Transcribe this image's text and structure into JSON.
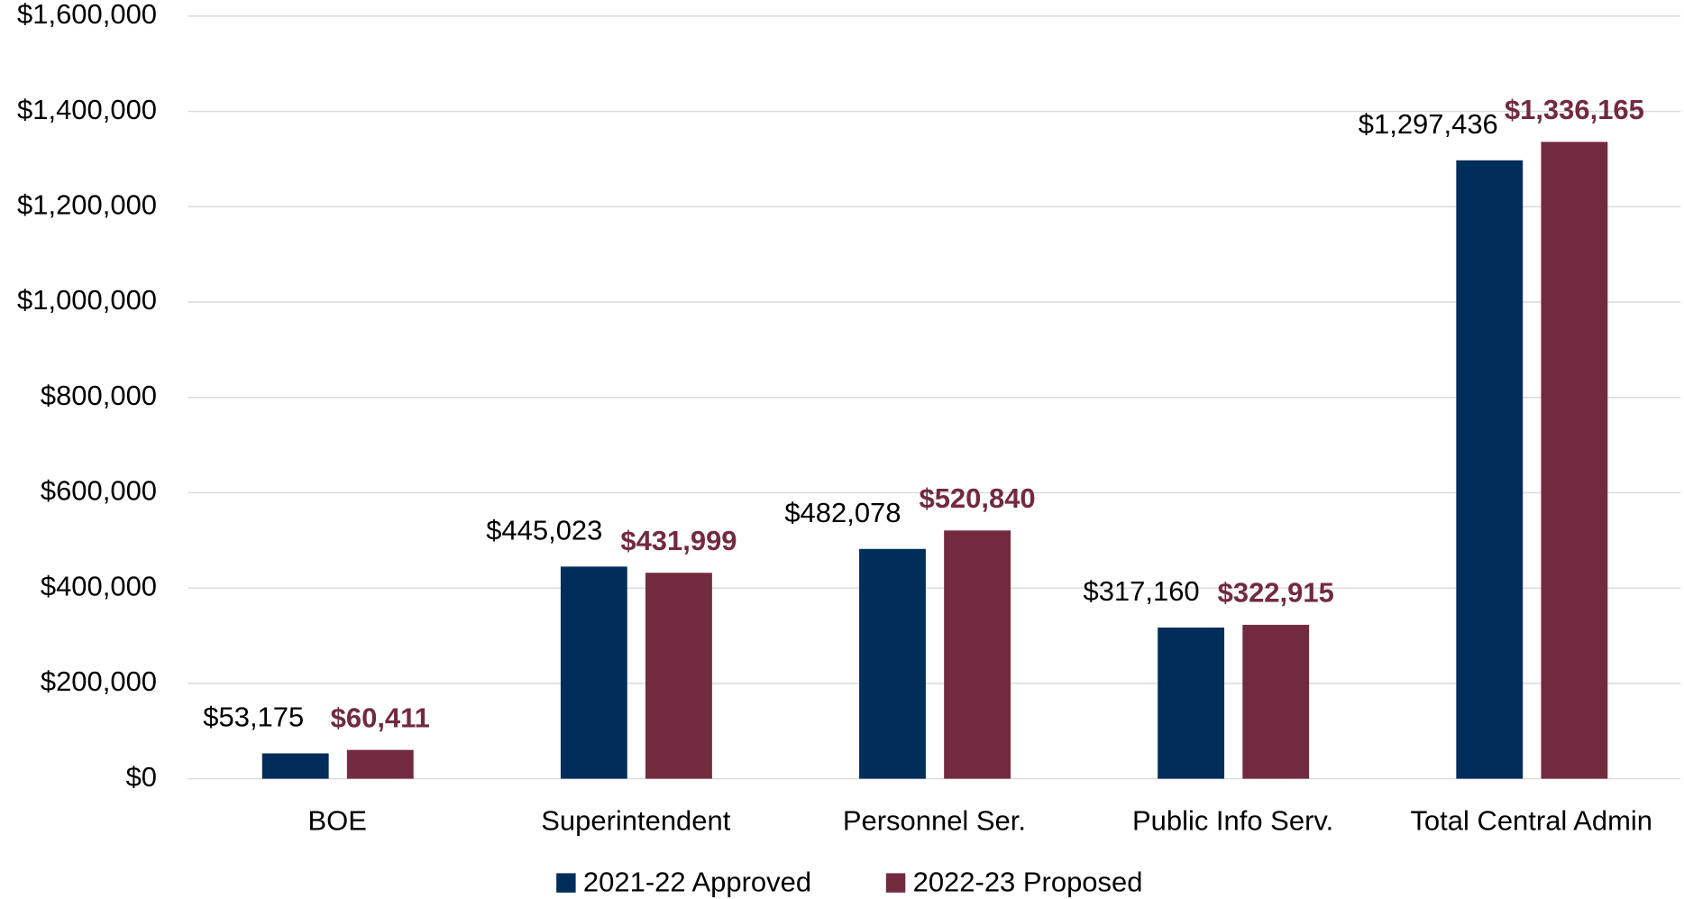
{
  "chart_data": {
    "type": "bar",
    "categories": [
      "BOE",
      "Superintendent",
      "Personnel Ser.",
      "Public Info Serv.",
      "Total Central Admin"
    ],
    "series": [
      {
        "name": "2021-22 Approved",
        "color": "#002d5a",
        "values": [
          53175,
          445023,
          482078,
          317160,
          1297436
        ],
        "value_labels": [
          "$53,175",
          "$445,023",
          "$482,078",
          "$317,160",
          "$1,297,436"
        ]
      },
      {
        "name": "2022-23 Proposed",
        "color": "#722a3f",
        "values": [
          60411,
          431999,
          520840,
          322915,
          1336165
        ],
        "value_labels": [
          "$60,411",
          "$431,999",
          "$520,840",
          "$322,915",
          "$1,336,165"
        ]
      }
    ],
    "ylim": [
      0,
      1600000
    ],
    "yticks": [
      {
        "value": 0,
        "label": "$0"
      },
      {
        "value": 200000,
        "label": "$200,000"
      },
      {
        "value": 400000,
        "label": "$400,000"
      },
      {
        "value": 600000,
        "label": "$600,000"
      },
      {
        "value": 800000,
        "label": "$800,000"
      },
      {
        "value": 1000000,
        "label": "$1,000,000"
      },
      {
        "value": 1200000,
        "label": "$1,200,000"
      },
      {
        "value": 1400000,
        "label": "$1,400,000"
      },
      {
        "value": 1600000,
        "label": "$1,600,000"
      }
    ],
    "grid": true,
    "legend": "bottom"
  }
}
